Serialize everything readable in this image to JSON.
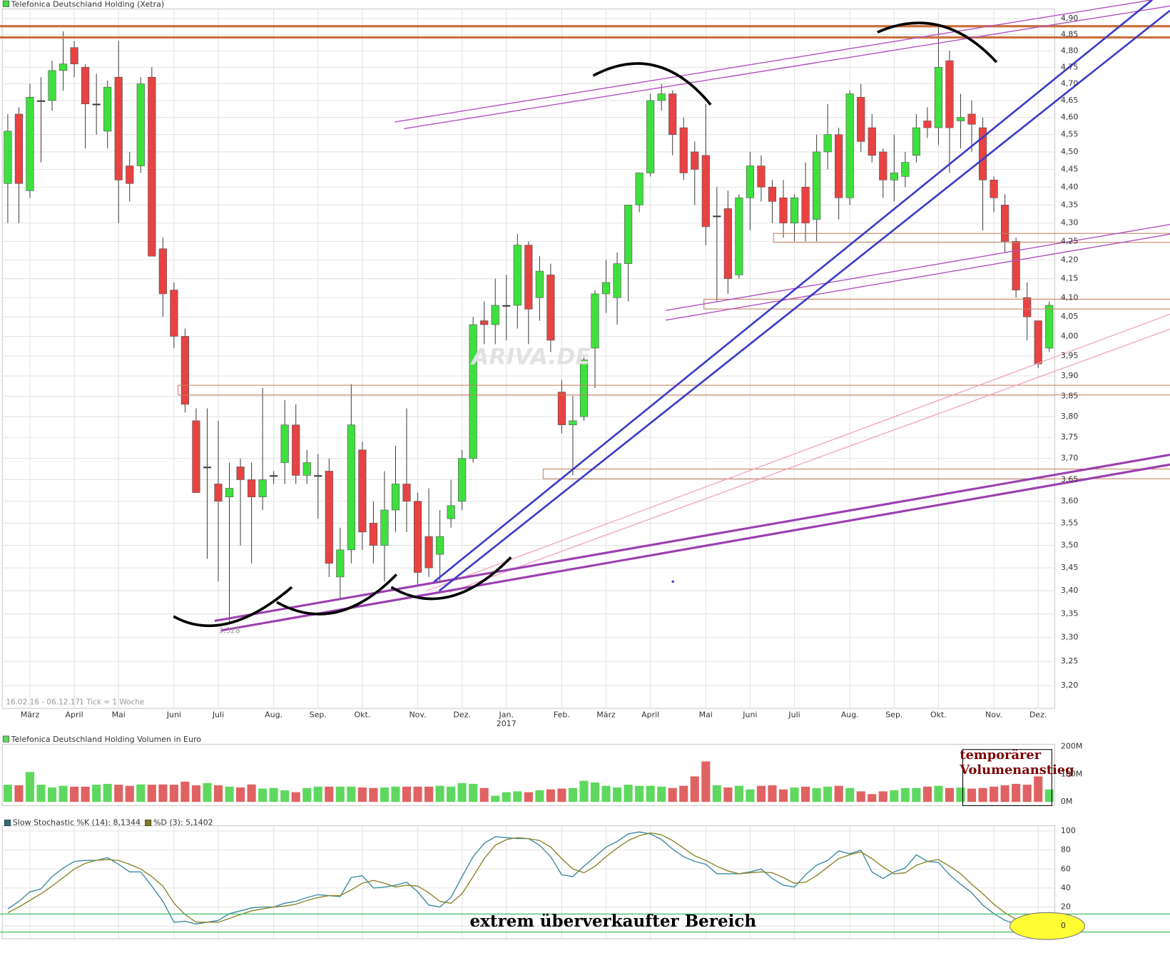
{
  "chart_data": [
    {
      "type": "candlestick",
      "title": "Telefonica Deutschland Holding (Xetra)",
      "date_range": "16.02.16 - 06.12.17",
      "tick_note": "1 Tick = 1 Woche",
      "watermark": "ARIVA.DE",
      "low_annotation": {
        "value": 3.328,
        "label": "3,328"
      },
      "year_label": "2017",
      "log": true,
      "grid": true,
      "up_color": "#3ee03e",
      "down_color": "#e84242",
      "xlim": [
        -0.5,
        94.5
      ],
      "xticks": [
        {
          "value": 2,
          "label": "März"
        },
        {
          "value": 6,
          "label": "April"
        },
        {
          "value": 10,
          "label": "Mai"
        },
        {
          "value": 15,
          "label": "Juni"
        },
        {
          "value": 19,
          "label": "Juli"
        },
        {
          "value": 24,
          "label": "Aug."
        },
        {
          "value": 28,
          "label": "Sep."
        },
        {
          "value": 32,
          "label": "Okt."
        },
        {
          "value": 37,
          "label": "Nov."
        },
        {
          "value": 41,
          "label": "Dez."
        },
        {
          "value": 45,
          "label": "Jan."
        },
        {
          "value": 50,
          "label": "Feb."
        },
        {
          "value": 54,
          "label": "März"
        },
        {
          "value": 58,
          "label": "April"
        },
        {
          "value": 63,
          "label": "Mai"
        },
        {
          "value": 67,
          "label": "Juni"
        },
        {
          "value": 71,
          "label": "Juli"
        },
        {
          "value": 76,
          "label": "Aug."
        },
        {
          "value": 80,
          "label": "Sep."
        },
        {
          "value": 84,
          "label": "Okt."
        },
        {
          "value": 89,
          "label": "Nov."
        },
        {
          "value": 93,
          "label": "Dez."
        }
      ],
      "ylim": [
        3.16,
        4.93
      ],
      "yticks": [
        {
          "value": 3.2,
          "label": "3,20"
        },
        {
          "value": 3.25,
          "label": "3,25"
        },
        {
          "value": 3.3,
          "label": "3,30"
        },
        {
          "value": 3.35,
          "label": "3,35"
        },
        {
          "value": 3.4,
          "label": "3,40"
        },
        {
          "value": 3.45,
          "label": "3,45"
        },
        {
          "value": 3.5,
          "label": "3,50"
        },
        {
          "value": 3.55,
          "label": "3,55"
        },
        {
          "value": 3.6,
          "label": "3,60"
        },
        {
          "value": 3.65,
          "label": "3,65"
        },
        {
          "value": 3.7,
          "label": "3,70"
        },
        {
          "value": 3.75,
          "label": "3,75"
        },
        {
          "value": 3.8,
          "label": "3,80"
        },
        {
          "value": 3.85,
          "label": "3,85"
        },
        {
          "value": 3.9,
          "label": "3,90"
        },
        {
          "value": 3.95,
          "label": "3,95"
        },
        {
          "value": 4.0,
          "label": "4,00"
        },
        {
          "value": 4.05,
          "label": "4,05"
        },
        {
          "value": 4.1,
          "label": "4,10"
        },
        {
          "value": 4.15,
          "label": "4,15"
        },
        {
          "value": 4.2,
          "label": "4,20"
        },
        {
          "value": 4.25,
          "label": "4,25"
        },
        {
          "value": 4.3,
          "label": "4,30"
        },
        {
          "value": 4.35,
          "label": "4,35"
        },
        {
          "value": 4.4,
          "label": "4,40"
        },
        {
          "value": 4.45,
          "label": "4,45"
        },
        {
          "value": 4.5,
          "label": "4,50"
        },
        {
          "value": 4.55,
          "label": "4,55"
        },
        {
          "value": 4.6,
          "label": "4,60"
        },
        {
          "value": 4.65,
          "label": "4,65"
        },
        {
          "value": 4.7,
          "label": "4,70"
        },
        {
          "value": 4.75,
          "label": "4,75"
        },
        {
          "value": 4.8,
          "label": "4,80"
        },
        {
          "value": 4.85,
          "label": "4,85"
        },
        {
          "value": 4.9,
          "label": "4,90"
        }
      ],
      "open": [
        4.41,
        4.61,
        4.39,
        4.65,
        4.65,
        4.74,
        4.81,
        4.75,
        4.64,
        4.56,
        4.72,
        4.46,
        4.46,
        4.72,
        4.23,
        4.12,
        4.0,
        3.79,
        3.68,
        3.64,
        3.61,
        3.68,
        3.65,
        3.61,
        3.66,
        3.69,
        3.78,
        3.66,
        3.66,
        3.67,
        3.43,
        3.49,
        3.72,
        3.55,
        3.5,
        3.58,
        3.64,
        3.6,
        3.52,
        3.48,
        3.56,
        3.6,
        3.7,
        4.04,
        4.03,
        4.08,
        4.08,
        4.24,
        4.1,
        4.16,
        3.86,
        3.78,
        3.8,
        3.97,
        4.11,
        4.1,
        4.19,
        4.35,
        4.44,
        4.65,
        4.67,
        4.57,
        4.5,
        4.49,
        4.32,
        4.34,
        4.16,
        4.37,
        4.46,
        4.4,
        4.37,
        4.3,
        4.4,
        4.31,
        4.5,
        4.55,
        4.37,
        4.66,
        4.57,
        4.5,
        4.42,
        4.43,
        4.49,
        4.59,
        4.57,
        4.77,
        4.59,
        4.61,
        4.57,
        4.42,
        4.35,
        4.25,
        4.1,
        4.04,
        3.97
      ],
      "high": [
        4.61,
        4.63,
        4.7,
        4.72,
        4.77,
        4.86,
        4.83,
        4.76,
        4.73,
        4.71,
        4.83,
        4.5,
        4.72,
        4.75,
        4.26,
        4.14,
        4.02,
        3.82,
        3.82,
        3.79,
        3.69,
        3.7,
        3.69,
        3.87,
        3.67,
        3.84,
        3.83,
        3.72,
        3.71,
        3.7,
        3.54,
        3.88,
        3.74,
        3.6,
        3.67,
        3.73,
        3.82,
        3.62,
        3.63,
        3.58,
        3.65,
        3.72,
        4.05,
        4.09,
        4.15,
        4.16,
        4.27,
        4.25,
        4.21,
        4.19,
        3.89,
        3.85,
        3.95,
        4.12,
        4.2,
        4.22,
        4.35,
        4.44,
        4.67,
        4.7,
        4.68,
        4.6,
        4.53,
        4.64,
        4.4,
        4.39,
        4.38,
        4.5,
        4.49,
        4.42,
        4.42,
        4.38,
        4.47,
        4.55,
        4.64,
        4.57,
        4.68,
        4.7,
        4.61,
        4.51,
        4.55,
        4.5,
        4.61,
        4.63,
        4.88,
        4.8,
        4.67,
        4.65,
        4.6,
        4.43,
        4.38,
        4.26,
        4.14,
        4.04,
        4.09
      ],
      "low": [
        4.3,
        4.3,
        4.37,
        4.47,
        4.62,
        4.68,
        4.72,
        4.51,
        4.55,
        4.51,
        4.3,
        4.36,
        4.44,
        4.21,
        4.05,
        3.97,
        3.81,
        3.62,
        3.47,
        3.42,
        3.328,
        3.5,
        3.46,
        3.58,
        3.64,
        3.64,
        3.64,
        3.64,
        3.56,
        3.43,
        3.38,
        3.46,
        3.49,
        3.46,
        3.42,
        3.53,
        3.53,
        3.41,
        3.43,
        3.42,
        3.54,
        3.58,
        3.69,
        3.98,
        3.98,
        3.99,
        4.02,
        3.98,
        4.04,
        3.96,
        3.76,
        3.66,
        3.79,
        3.87,
        4.06,
        4.03,
        4.09,
        4.33,
        4.43,
        4.62,
        4.49,
        4.42,
        4.35,
        4.24,
        4.09,
        4.11,
        4.15,
        4.28,
        4.36,
        4.3,
        4.26,
        4.25,
        4.25,
        4.25,
        4.45,
        4.31,
        4.35,
        4.5,
        4.47,
        4.37,
        4.36,
        4.4,
        4.47,
        4.54,
        4.52,
        4.44,
        4.51,
        4.5,
        4.28,
        4.33,
        4.22,
        4.1,
        3.99,
        3.92,
        3.96
      ],
      "close": [
        4.56,
        4.41,
        4.66,
        4.65,
        4.74,
        4.76,
        4.76,
        4.64,
        4.64,
        4.69,
        4.42,
        4.41,
        4.7,
        4.21,
        4.11,
        4.0,
        3.83,
        3.62,
        3.68,
        3.6,
        3.63,
        3.65,
        3.61,
        3.65,
        3.66,
        3.78,
        3.66,
        3.69,
        3.66,
        3.46,
        3.49,
        3.78,
        3.53,
        3.5,
        3.58,
        3.64,
        3.6,
        3.44,
        3.45,
        3.52,
        3.59,
        3.7,
        4.03,
        4.03,
        4.08,
        4.08,
        4.24,
        4.07,
        4.17,
        3.99,
        3.78,
        3.79,
        3.94,
        4.11,
        4.14,
        4.19,
        4.35,
        4.44,
        4.65,
        4.67,
        4.55,
        4.44,
        4.45,
        4.29,
        4.32,
        4.15,
        4.37,
        4.46,
        4.4,
        4.36,
        4.3,
        4.37,
        4.3,
        4.5,
        4.55,
        4.37,
        4.67,
        4.53,
        4.49,
        4.42,
        4.44,
        4.47,
        4.57,
        4.57,
        4.75,
        4.57,
        4.6,
        4.58,
        4.42,
        4.37,
        4.25,
        4.12,
        4.05,
        3.93,
        4.08
      ]
    },
    {
      "type": "bar",
      "title": "Telefonica Deutschland Holding Volumen in Euro",
      "annotation": [
        "temporärer",
        "Volumenanstieg"
      ],
      "up_color": "#5fd85f",
      "down_color": "#e06262",
      "xlim": [
        -0.5,
        94.5
      ],
      "ylim": [
        0,
        208000000
      ],
      "yticks": [
        {
          "value": 0,
          "label": "0M"
        },
        {
          "value": 100000000,
          "label": "100M"
        },
        {
          "value": 200000000,
          "label": "200M"
        }
      ],
      "values": [
        62000000,
        60000000,
        108000000,
        62000000,
        52000000,
        58000000,
        55000000,
        55000000,
        62000000,
        65000000,
        62000000,
        58000000,
        63000000,
        62000000,
        63000000,
        62000000,
        73000000,
        60000000,
        68000000,
        60000000,
        55000000,
        52000000,
        63000000,
        48000000,
        50000000,
        42000000,
        35000000,
        50000000,
        55000000,
        55000000,
        55000000,
        55000000,
        52000000,
        50000000,
        52000000,
        55000000,
        55000000,
        55000000,
        55000000,
        58000000,
        55000000,
        68000000,
        65000000,
        50000000,
        22000000,
        35000000,
        38000000,
        35000000,
        42000000,
        45000000,
        48000000,
        50000000,
        76000000,
        70000000,
        58000000,
        52000000,
        62000000,
        58000000,
        58000000,
        55000000,
        50000000,
        58000000,
        92000000,
        146000000,
        60000000,
        52000000,
        58000000,
        45000000,
        58000000,
        60000000,
        45000000,
        52000000,
        55000000,
        50000000,
        55000000,
        58000000,
        50000000,
        38000000,
        28000000,
        38000000,
        42000000,
        50000000,
        50000000,
        55000000,
        58000000,
        50000000,
        52000000,
        48000000,
        50000000,
        55000000,
        60000000,
        65000000,
        62000000,
        92000000,
        45000000
      ]
    },
    {
      "type": "line",
      "annotation": "extrem überverkaufter Bereich",
      "xlim": [
        -0.5,
        94.5
      ],
      "ylim": [
        -13,
        105
      ],
      "yticks": [
        0,
        20,
        40,
        60,
        80,
        100
      ],
      "series": [
        {
          "name": "Slow Stochastic %K (14): 8,1344",
          "color": "#3b8aa3",
          "values": [
            18,
            26,
            36,
            39,
            52,
            61,
            68,
            69,
            69,
            72,
            65,
            57,
            57,
            42,
            26,
            4,
            5,
            2,
            4,
            6,
            13,
            16,
            19,
            20,
            20,
            24,
            26,
            30,
            33,
            32,
            31,
            51,
            53,
            40,
            41,
            43,
            46,
            36,
            22,
            20,
            30,
            52,
            73,
            87,
            94,
            93,
            92,
            92,
            85,
            73,
            54,
            52,
            63,
            73,
            83,
            89,
            97,
            99,
            97,
            91,
            81,
            73,
            68,
            65,
            55,
            55,
            55,
            57,
            60,
            50,
            43,
            41,
            54,
            64,
            69,
            79,
            76,
            80,
            57,
            50,
            57,
            61,
            75,
            68,
            67,
            54,
            44,
            35,
            22,
            13,
            6,
            2,
            2,
            5,
            8.1344
          ]
        },
        {
          "name": "%D (3): 5,1402",
          "color": "#8a8228",
          "values": [
            14,
            20,
            27,
            34,
            42,
            51,
            60,
            66,
            69,
            70,
            69,
            65,
            60,
            52,
            42,
            24,
            12,
            4,
            4,
            4,
            8,
            12,
            16,
            18,
            20,
            21,
            23,
            27,
            30,
            32,
            32,
            38,
            45,
            48,
            45,
            41,
            43,
            42,
            35,
            26,
            24,
            34,
            52,
            71,
            85,
            91,
            93,
            92,
            90,
            83,
            71,
            60,
            56,
            63,
            73,
            82,
            90,
            95,
            98,
            96,
            90,
            82,
            74,
            69,
            63,
            58,
            55,
            56,
            57,
            56,
            51,
            45,
            46,
            53,
            62,
            71,
            75,
            78,
            71,
            62,
            55,
            56,
            64,
            68,
            70,
            63,
            55,
            44,
            34,
            23,
            14,
            7,
            3,
            3,
            5.1402
          ]
        }
      ]
    }
  ]
}
